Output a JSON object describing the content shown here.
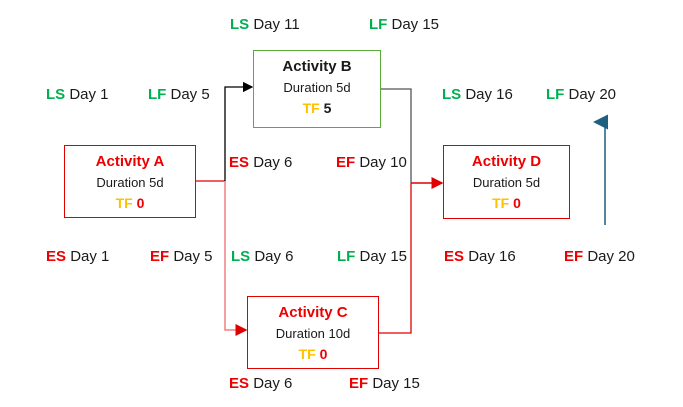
{
  "colors": {
    "critical": "#ee0000",
    "late": "#00b050",
    "float": "#ffc000",
    "milestone_arrow": "#1f5f7f"
  },
  "activities": [
    {
      "name": "Activity A",
      "duration": "Duration 5d",
      "tf_label": "TF",
      "tf_value": "0",
      "critical": true,
      "ls": {
        "abbr": "LS",
        "day": "Day 1"
      },
      "lf": {
        "abbr": "LF",
        "day": "Day 5"
      },
      "es": {
        "abbr": "ES",
        "day": "Day 1"
      },
      "ef": {
        "abbr": "EF",
        "day": "Day 5"
      }
    },
    {
      "name": "Activity B",
      "duration": "Duration 5d",
      "tf_label": "TF",
      "tf_value": "5",
      "critical": false,
      "ls": {
        "abbr": "LS",
        "day": "Day 11"
      },
      "lf": {
        "abbr": "LF",
        "day": "Day 15"
      },
      "es": {
        "abbr": "ES",
        "day": "Day 6"
      },
      "ef": {
        "abbr": "EF",
        "day": "Day 10"
      }
    },
    {
      "name": "Activity C",
      "duration": "Duration 10d",
      "tf_label": "TF",
      "tf_value": "0",
      "critical": true,
      "ls": {
        "abbr": "LS",
        "day": "Day 6"
      },
      "lf": {
        "abbr": "LF",
        "day": "Day 15"
      },
      "es": {
        "abbr": "ES",
        "day": "Day 6"
      },
      "ef": {
        "abbr": "EF",
        "day": "Day 15"
      }
    },
    {
      "name": "Activity D",
      "duration": "Duration 5d",
      "tf_label": "TF",
      "tf_value": "0",
      "critical": true,
      "ls": {
        "abbr": "LS",
        "day": "Day 16"
      },
      "lf": {
        "abbr": "LF",
        "day": "Day 20"
      },
      "es": {
        "abbr": "ES",
        "day": "Day 16"
      },
      "ef": {
        "abbr": "EF",
        "day": "Day 20"
      }
    }
  ]
}
